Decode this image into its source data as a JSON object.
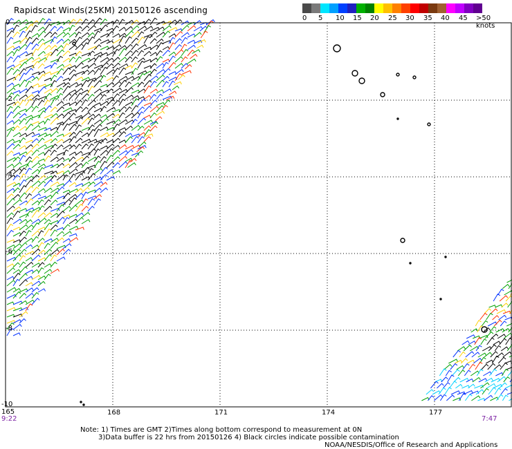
{
  "title": "Rapidscat Winds(25KM) 20150126 ascending",
  "legend": {
    "segments": [
      {
        "color": "#4a4a4a"
      },
      {
        "color": "#7a7a7a"
      },
      {
        "color": "#00e5ff"
      },
      {
        "color": "#00a0ff"
      },
      {
        "color": "#0040ff"
      },
      {
        "color": "#2020c0"
      },
      {
        "color": "#00b000"
      },
      {
        "color": "#008000"
      },
      {
        "color": "#ffff00"
      },
      {
        "color": "#ffc000"
      },
      {
        "color": "#ff8000"
      },
      {
        "color": "#ff4000"
      },
      {
        "color": "#ff0000"
      },
      {
        "color": "#c00000"
      },
      {
        "color": "#7a3a10"
      },
      {
        "color": "#a06030"
      },
      {
        "color": "#ff00ff"
      },
      {
        "color": "#c000ff"
      },
      {
        "color": "#8000c0"
      },
      {
        "color": "#600090"
      }
    ],
    "labels": [
      "0",
      "5",
      "10",
      "15",
      "20",
      "25",
      "30",
      "35",
      "40",
      "45",
      ">50 knots"
    ]
  },
  "axes": {
    "y_labels": [
      "0",
      "-2",
      "-4",
      "-6",
      "-8",
      "-10"
    ],
    "x_labels": [
      "165",
      "168",
      "171",
      "174",
      "177"
    ]
  },
  "times": {
    "left": "9:22",
    "right": "7:47"
  },
  "notes": {
    "line1": "Note: 1) Times are GMT 2)Times along bottom correspond to measurement at 0N",
    "line2": "3)Data buffer is 22 hrs from 20150126 4) Black circles indicate possible contamination",
    "line3": "NOAA/NESDIS/Office of Research and Applications"
  },
  "map": {
    "grid": "dotted",
    "swath_colors": [
      "#000000",
      "#00a000",
      "#0030ff",
      "#ffd000",
      "#ff3000",
      "#00d0ff",
      "#8a8a8a"
    ]
  }
}
